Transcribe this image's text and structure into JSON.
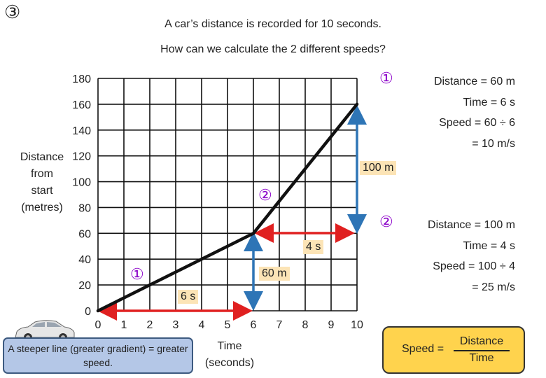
{
  "header": {
    "question_number": "③",
    "line1": "A car’s distance is recorded for 10 seconds.",
    "line2": "How can we calculate the 2 different speeds?"
  },
  "axes": {
    "y_label_lines": [
      "Distance",
      "from",
      "start",
      "(metres)"
    ],
    "x_label_lines": [
      "Time",
      "(seconds)"
    ],
    "y_ticks": [
      "0",
      "20",
      "40",
      "60",
      "80",
      "100",
      "120",
      "140",
      "160",
      "180"
    ],
    "x_ticks": [
      "0",
      "1",
      "2",
      "3",
      "4",
      "5",
      "6",
      "7",
      "8",
      "9",
      "10"
    ]
  },
  "chart_data": {
    "type": "line",
    "x": [
      0,
      6,
      10
    ],
    "y": [
      0,
      60,
      160
    ],
    "xlim": [
      0,
      10
    ],
    "ylim": [
      0,
      180
    ],
    "grid": true
  },
  "segment_markers": {
    "one": "①",
    "two": "②"
  },
  "annotations": {
    "six_s": "6 s",
    "sixty_m": "60 m",
    "four_s": "4 s",
    "hundred_m": "100 m"
  },
  "calc1": {
    "marker": "①",
    "lines": [
      "Distance = 60 m",
      "Time = 6 s",
      "Speed = 60 ÷ 6",
      "= 10 m/s"
    ]
  },
  "calc2": {
    "marker": "②",
    "lines": [
      "Distance = 100 m",
      "Time = 4 s",
      "Speed = 100 ÷ 4",
      "= 25 m/s"
    ]
  },
  "note": {
    "text": "A steeper line (greater gradient) = greater speed."
  },
  "formula": {
    "label": "Speed =",
    "numerator": "Distance",
    "denominator": "Time"
  },
  "colors": {
    "line": "#111111",
    "grid": "#111111",
    "red_arrow": "#e02020",
    "blue_arrow": "#2e75b6",
    "marker": "#8b00c9",
    "tag_fill": "#fce4b6",
    "note_fill": "#b4c7e7",
    "formula_fill": "#ffd34d"
  }
}
